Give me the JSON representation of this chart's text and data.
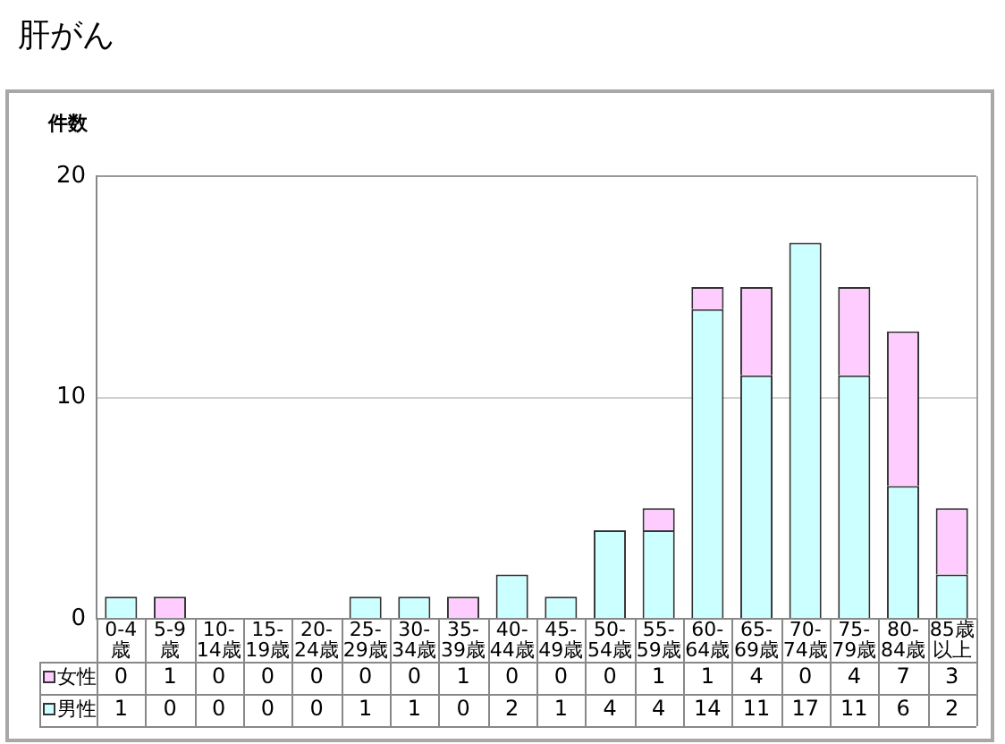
{
  "chart_data": {
    "type": "bar",
    "title": "肝がん",
    "ylabel": "件数",
    "categories": [
      "0-4歳",
      "5-9歳",
      "10-14歳",
      "15-19歳",
      "20-24歳",
      "25-29歳",
      "30-34歳",
      "35-39歳",
      "40-44歳",
      "45-49歳",
      "50-54歳",
      "55-59歳",
      "60-64歳",
      "65-69歳",
      "70-74歳",
      "75-79歳",
      "80-84歳",
      "85歳以上"
    ],
    "series": [
      {
        "name": "男性",
        "color": "#ccffff",
        "values": [
          1,
          0,
          0,
          0,
          0,
          1,
          1,
          0,
          2,
          1,
          4,
          4,
          14,
          11,
          17,
          11,
          6,
          2
        ]
      },
      {
        "name": "女性",
        "color": "#ffccff",
        "values": [
          0,
          1,
          0,
          0,
          0,
          0,
          0,
          1,
          0,
          0,
          0,
          1,
          1,
          4,
          0,
          4,
          7,
          3
        ]
      }
    ],
    "stacked": true,
    "ylim": [
      0,
      20
    ],
    "yticks": [
      0,
      10,
      20
    ],
    "grid": "y",
    "legend": "bottom left",
    "data_labels": true
  }
}
